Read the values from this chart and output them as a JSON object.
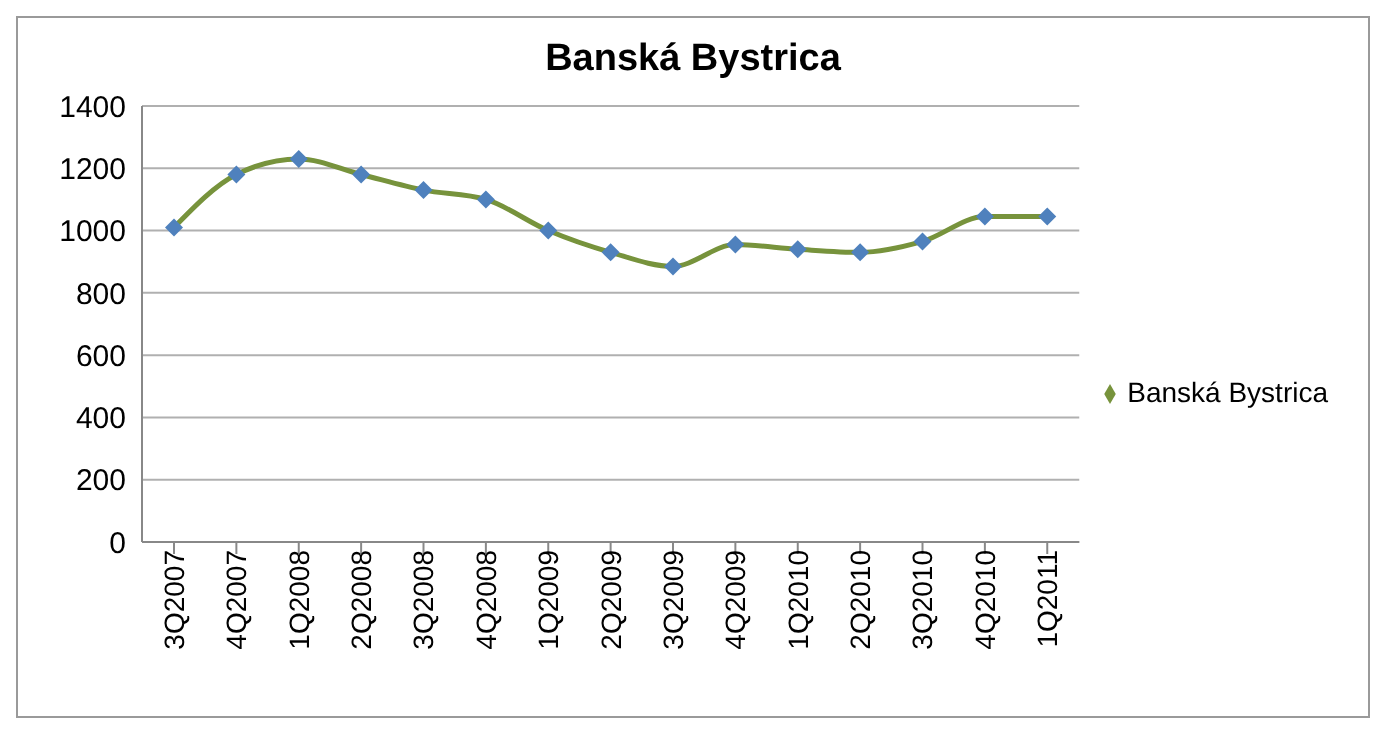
{
  "chart_data": {
    "type": "line",
    "title": "Banská Bystrica",
    "categories": [
      "3Q2007",
      "4Q2007",
      "1Q2008",
      "2Q2008",
      "3Q2008",
      "4Q2008",
      "1Q2009",
      "2Q2009",
      "3Q2009",
      "4Q2009",
      "1Q2010",
      "2Q2010",
      "3Q2010",
      "4Q2010",
      "1Q2011"
    ],
    "series": [
      {
        "name": "Banská Bystrica",
        "color": "#77933c",
        "values": [
          1010,
          1180,
          1230,
          1180,
          1130,
          1100,
          1000,
          930,
          885,
          955,
          940,
          930,
          965,
          1045,
          1045
        ]
      }
    ],
    "ylim": [
      0,
      1400
    ],
    "yticks": [
      0,
      200,
      400,
      600,
      800,
      1000,
      1200,
      1400
    ],
    "grid": "y",
    "legend": "right",
    "marker": "diamond",
    "line_style": "solid"
  }
}
